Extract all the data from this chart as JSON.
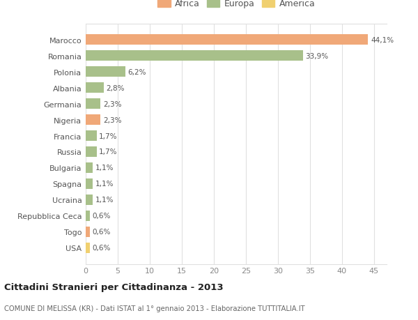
{
  "categories": [
    "Marocco",
    "Romania",
    "Polonia",
    "Albania",
    "Germania",
    "Nigeria",
    "Francia",
    "Russia",
    "Bulgaria",
    "Spagna",
    "Ucraina",
    "Repubblica Ceca",
    "Togo",
    "USA"
  ],
  "values": [
    44.1,
    33.9,
    6.2,
    2.8,
    2.3,
    2.3,
    1.7,
    1.7,
    1.1,
    1.1,
    1.1,
    0.6,
    0.6,
    0.6
  ],
  "labels": [
    "44,1%",
    "33,9%",
    "6,2%",
    "2,8%",
    "2,3%",
    "2,3%",
    "1,7%",
    "1,7%",
    "1,1%",
    "1,1%",
    "1,1%",
    "0,6%",
    "0,6%",
    "0,6%"
  ],
  "colors": [
    "#F0A878",
    "#A8C08A",
    "#A8C08A",
    "#A8C08A",
    "#A8C08A",
    "#F0A878",
    "#A8C08A",
    "#A8C08A",
    "#A8C08A",
    "#A8C08A",
    "#A8C08A",
    "#A8C08A",
    "#F0A878",
    "#F0D070"
  ],
  "legend_labels": [
    "Africa",
    "Europa",
    "America"
  ],
  "legend_colors": [
    "#F0A878",
    "#A8C08A",
    "#F0D070"
  ],
  "title": "Cittadini Stranieri per Cittadinanza - 2013",
  "subtitle": "COMUNE DI MELISSA (KR) - Dati ISTAT al 1° gennaio 2013 - Elaborazione TUTTITALIA.IT",
  "xlim": [
    0,
    47
  ],
  "xticks": [
    0,
    5,
    10,
    15,
    20,
    25,
    30,
    35,
    40,
    45
  ],
  "background_color": "#ffffff",
  "grid_color": "#e0e0e0",
  "bar_height": 0.65
}
